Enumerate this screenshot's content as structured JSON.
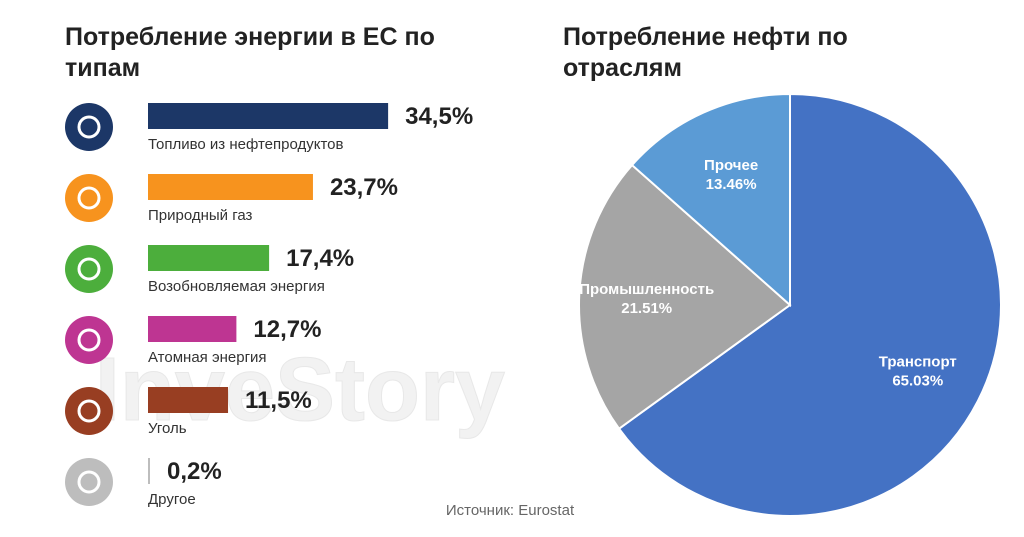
{
  "chart_data": [
    {
      "type": "bar",
      "title": "Потребление энергии в ЕС по типам",
      "categories": [
        "Топливо из нефтепродуктов",
        "Природный газ",
        "Возобновляемая энергия",
        "Атомная энергия",
        "Уголь",
        "Другое"
      ],
      "values": [
        34.5,
        23.7,
        17.4,
        12.7,
        11.5,
        0.2
      ],
      "value_labels": [
        "34,5%",
        "23,7%",
        "17,4%",
        "12,7%",
        "11,5%",
        "0,2%"
      ],
      "colors": [
        "#1c3767",
        "#f7931e",
        "#4cae3c",
        "#be3592",
        "#983e22",
        "#bdbdbd"
      ]
    },
    {
      "type": "pie",
      "title": "Потребление нефти по отраслям",
      "categories": [
        "Транспорт",
        "Промышленность",
        "Прочее"
      ],
      "values": [
        65.03,
        21.51,
        13.46
      ],
      "value_labels": [
        "65.03%",
        "21.51%",
        "13.46%"
      ],
      "colors": [
        "#4472c4",
        "#a5a5a5",
        "#5b9bd5"
      ]
    }
  ],
  "source": "Источник: Eurostat",
  "watermark": "InveStory"
}
